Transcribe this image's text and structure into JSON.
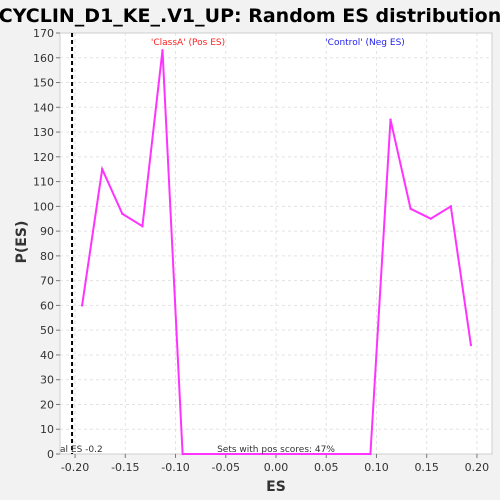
{
  "chart_data": {
    "type": "line",
    "title": "CYCLIN_D1_KE_.V1_UP: Random ES distribution",
    "xlabel": "ES",
    "ylabel": "P(ES)",
    "xlim": [
      -0.215,
      0.215
    ],
    "ylim": [
      0,
      170
    ],
    "x_ticks": [
      -0.2,
      -0.15,
      -0.1,
      -0.05,
      0.0,
      0.05,
      0.1,
      0.15,
      0.2
    ],
    "x_tick_labels": [
      "-0.20",
      "-0.15",
      "-0.10",
      "-0.05",
      "0.00",
      "0.05",
      "0.10",
      "0.15",
      "0.20"
    ],
    "y_ticks": [
      0,
      10,
      20,
      30,
      40,
      50,
      60,
      70,
      80,
      90,
      100,
      110,
      120,
      130,
      140,
      150,
      160,
      170
    ],
    "y_tick_labels": [
      "0",
      "10",
      "20",
      "30",
      "40",
      "50",
      "60",
      "70",
      "80",
      "90",
      "100",
      "110",
      "120",
      "130",
      "140",
      "150",
      "160",
      "170"
    ],
    "grid": true,
    "series": [
      {
        "color": "#ff33ff",
        "x": [
          -0.193,
          -0.173,
          -0.153,
          -0.133,
          -0.113,
          -0.093,
          0.094,
          0.114,
          0.134,
          0.154,
          0.174,
          0.194
        ],
        "y": [
          60,
          115,
          97,
          92,
          163,
          0,
          0,
          135,
          99,
          95,
          100,
          44
        ]
      }
    ],
    "annotations": {
      "pos_label": {
        "text": "'ClassA' (Pos ES)",
        "color": "#ff2222"
      },
      "neg_label": {
        "text": "'Control' (Neg ES)",
        "color": "#2222ee"
      },
      "sets_text": "Sets with pos scores: 47%",
      "actual_es_label": "al ES -0.2",
      "actual_es_value": -0.203
    }
  }
}
